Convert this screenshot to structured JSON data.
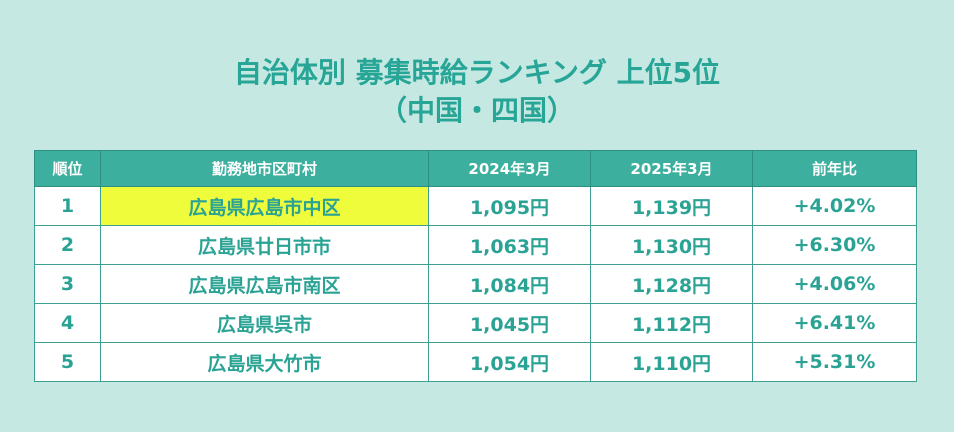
{
  "title": {
    "line1": "自治体別 募集時給ランキング 上位5位",
    "line2": "（中国・四国）"
  },
  "table": {
    "headers": [
      "順位",
      "勤務地市区町村",
      "2024年3月",
      "2025年3月",
      "前年比"
    ],
    "rows": [
      {
        "rank": "1",
        "area": "広島県広島市中区",
        "wage_2024": "1,095円",
        "wage_2025": "1,139円",
        "yoy": "+4.02%"
      },
      {
        "rank": "2",
        "area": "広島県廿日市市",
        "wage_2024": "1,063円",
        "wage_2025": "1,130円",
        "yoy": "+6.30%"
      },
      {
        "rank": "3",
        "area": "広島県広島市南区",
        "wage_2024": "1,084円",
        "wage_2025": "1,128円",
        "yoy": "+4.06%"
      },
      {
        "rank": "4",
        "area": "広島県呉市",
        "wage_2024": "1,045円",
        "wage_2025": "1,112円",
        "yoy": "+6.41%"
      },
      {
        "rank": "5",
        "area": "広島県大竹市",
        "wage_2024": "1,054円",
        "wage_2025": "1,110円",
        "yoy": "+5.31%"
      }
    ]
  },
  "colors": {
    "background": "#c5e8e2",
    "accent": "#27a596",
    "header_bg": "#3caf9e",
    "highlight": "#eefc3c"
  }
}
